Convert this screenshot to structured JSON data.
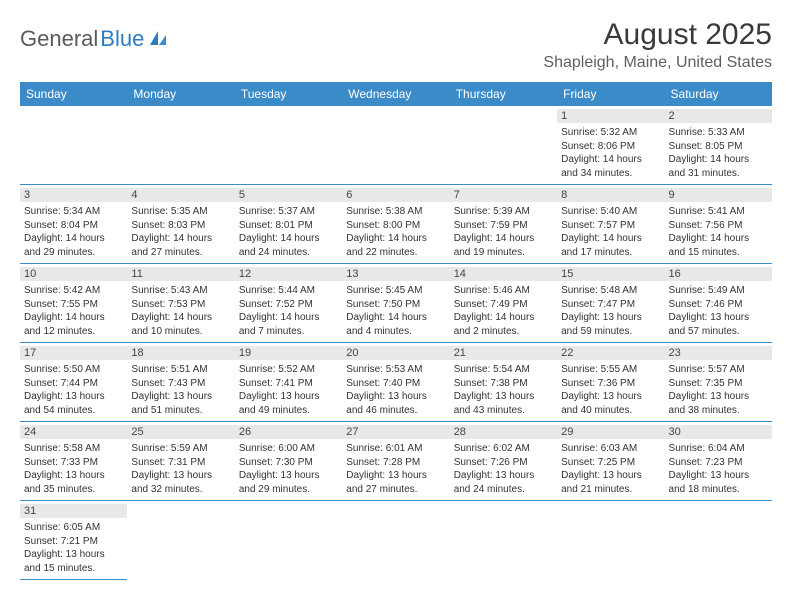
{
  "logo": {
    "general": "General",
    "blue": "Blue"
  },
  "title": "August 2025",
  "subtitle": "Shapleigh, Maine, United States",
  "colors": {
    "header_bg": "#3b8bc9",
    "header_text": "#ffffff",
    "daynum_bg": "#e8e8e8",
    "cell_border": "#3b8bc9",
    "logo_general": "#5a5a5a",
    "logo_blue": "#2e7cc0",
    "title_color": "#3a3a3a",
    "subtitle_color": "#5f5f5f",
    "text_color": "#333333"
  },
  "typography": {
    "title_fontsize": 30,
    "subtitle_fontsize": 16,
    "header_fontsize": 12,
    "cell_fontsize": 10,
    "daynum_fontsize": 11
  },
  "weekdays": [
    "Sunday",
    "Monday",
    "Tuesday",
    "Wednesday",
    "Thursday",
    "Friday",
    "Saturday"
  ],
  "weeks": [
    [
      null,
      null,
      null,
      null,
      null,
      {
        "d": "1",
        "sr": "Sunrise: 5:32 AM",
        "ss": "Sunset: 8:06 PM",
        "dl1": "Daylight: 14 hours",
        "dl2": "and 34 minutes."
      },
      {
        "d": "2",
        "sr": "Sunrise: 5:33 AM",
        "ss": "Sunset: 8:05 PM",
        "dl1": "Daylight: 14 hours",
        "dl2": "and 31 minutes."
      }
    ],
    [
      {
        "d": "3",
        "sr": "Sunrise: 5:34 AM",
        "ss": "Sunset: 8:04 PM",
        "dl1": "Daylight: 14 hours",
        "dl2": "and 29 minutes."
      },
      {
        "d": "4",
        "sr": "Sunrise: 5:35 AM",
        "ss": "Sunset: 8:03 PM",
        "dl1": "Daylight: 14 hours",
        "dl2": "and 27 minutes."
      },
      {
        "d": "5",
        "sr": "Sunrise: 5:37 AM",
        "ss": "Sunset: 8:01 PM",
        "dl1": "Daylight: 14 hours",
        "dl2": "and 24 minutes."
      },
      {
        "d": "6",
        "sr": "Sunrise: 5:38 AM",
        "ss": "Sunset: 8:00 PM",
        "dl1": "Daylight: 14 hours",
        "dl2": "and 22 minutes."
      },
      {
        "d": "7",
        "sr": "Sunrise: 5:39 AM",
        "ss": "Sunset: 7:59 PM",
        "dl1": "Daylight: 14 hours",
        "dl2": "and 19 minutes."
      },
      {
        "d": "8",
        "sr": "Sunrise: 5:40 AM",
        "ss": "Sunset: 7:57 PM",
        "dl1": "Daylight: 14 hours",
        "dl2": "and 17 minutes."
      },
      {
        "d": "9",
        "sr": "Sunrise: 5:41 AM",
        "ss": "Sunset: 7:56 PM",
        "dl1": "Daylight: 14 hours",
        "dl2": "and 15 minutes."
      }
    ],
    [
      {
        "d": "10",
        "sr": "Sunrise: 5:42 AM",
        "ss": "Sunset: 7:55 PM",
        "dl1": "Daylight: 14 hours",
        "dl2": "and 12 minutes."
      },
      {
        "d": "11",
        "sr": "Sunrise: 5:43 AM",
        "ss": "Sunset: 7:53 PM",
        "dl1": "Daylight: 14 hours",
        "dl2": "and 10 minutes."
      },
      {
        "d": "12",
        "sr": "Sunrise: 5:44 AM",
        "ss": "Sunset: 7:52 PM",
        "dl1": "Daylight: 14 hours",
        "dl2": "and 7 minutes."
      },
      {
        "d": "13",
        "sr": "Sunrise: 5:45 AM",
        "ss": "Sunset: 7:50 PM",
        "dl1": "Daylight: 14 hours",
        "dl2": "and 4 minutes."
      },
      {
        "d": "14",
        "sr": "Sunrise: 5:46 AM",
        "ss": "Sunset: 7:49 PM",
        "dl1": "Daylight: 14 hours",
        "dl2": "and 2 minutes."
      },
      {
        "d": "15",
        "sr": "Sunrise: 5:48 AM",
        "ss": "Sunset: 7:47 PM",
        "dl1": "Daylight: 13 hours",
        "dl2": "and 59 minutes."
      },
      {
        "d": "16",
        "sr": "Sunrise: 5:49 AM",
        "ss": "Sunset: 7:46 PM",
        "dl1": "Daylight: 13 hours",
        "dl2": "and 57 minutes."
      }
    ],
    [
      {
        "d": "17",
        "sr": "Sunrise: 5:50 AM",
        "ss": "Sunset: 7:44 PM",
        "dl1": "Daylight: 13 hours",
        "dl2": "and 54 minutes."
      },
      {
        "d": "18",
        "sr": "Sunrise: 5:51 AM",
        "ss": "Sunset: 7:43 PM",
        "dl1": "Daylight: 13 hours",
        "dl2": "and 51 minutes."
      },
      {
        "d": "19",
        "sr": "Sunrise: 5:52 AM",
        "ss": "Sunset: 7:41 PM",
        "dl1": "Daylight: 13 hours",
        "dl2": "and 49 minutes."
      },
      {
        "d": "20",
        "sr": "Sunrise: 5:53 AM",
        "ss": "Sunset: 7:40 PM",
        "dl1": "Daylight: 13 hours",
        "dl2": "and 46 minutes."
      },
      {
        "d": "21",
        "sr": "Sunrise: 5:54 AM",
        "ss": "Sunset: 7:38 PM",
        "dl1": "Daylight: 13 hours",
        "dl2": "and 43 minutes."
      },
      {
        "d": "22",
        "sr": "Sunrise: 5:55 AM",
        "ss": "Sunset: 7:36 PM",
        "dl1": "Daylight: 13 hours",
        "dl2": "and 40 minutes."
      },
      {
        "d": "23",
        "sr": "Sunrise: 5:57 AM",
        "ss": "Sunset: 7:35 PM",
        "dl1": "Daylight: 13 hours",
        "dl2": "and 38 minutes."
      }
    ],
    [
      {
        "d": "24",
        "sr": "Sunrise: 5:58 AM",
        "ss": "Sunset: 7:33 PM",
        "dl1": "Daylight: 13 hours",
        "dl2": "and 35 minutes."
      },
      {
        "d": "25",
        "sr": "Sunrise: 5:59 AM",
        "ss": "Sunset: 7:31 PM",
        "dl1": "Daylight: 13 hours",
        "dl2": "and 32 minutes."
      },
      {
        "d": "26",
        "sr": "Sunrise: 6:00 AM",
        "ss": "Sunset: 7:30 PM",
        "dl1": "Daylight: 13 hours",
        "dl2": "and 29 minutes."
      },
      {
        "d": "27",
        "sr": "Sunrise: 6:01 AM",
        "ss": "Sunset: 7:28 PM",
        "dl1": "Daylight: 13 hours",
        "dl2": "and 27 minutes."
      },
      {
        "d": "28",
        "sr": "Sunrise: 6:02 AM",
        "ss": "Sunset: 7:26 PM",
        "dl1": "Daylight: 13 hours",
        "dl2": "and 24 minutes."
      },
      {
        "d": "29",
        "sr": "Sunrise: 6:03 AM",
        "ss": "Sunset: 7:25 PM",
        "dl1": "Daylight: 13 hours",
        "dl2": "and 21 minutes."
      },
      {
        "d": "30",
        "sr": "Sunrise: 6:04 AM",
        "ss": "Sunset: 7:23 PM",
        "dl1": "Daylight: 13 hours",
        "dl2": "and 18 minutes."
      }
    ],
    [
      {
        "d": "31",
        "sr": "Sunrise: 6:05 AM",
        "ss": "Sunset: 7:21 PM",
        "dl1": "Daylight: 13 hours",
        "dl2": "and 15 minutes."
      },
      null,
      null,
      null,
      null,
      null,
      null
    ]
  ]
}
